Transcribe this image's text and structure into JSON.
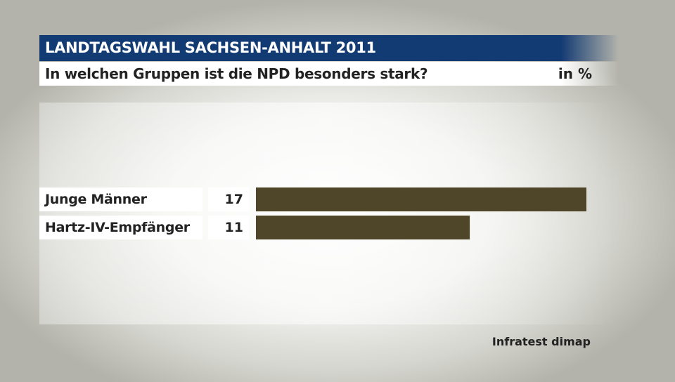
{
  "header": {
    "title": "LANDTAGSWAHL SACHSEN-ANHALT 2011",
    "subtitle": "In welchen Gruppen ist die NPD besonders stark?",
    "unit": "in %"
  },
  "source": "Infratest dimap",
  "colors": {
    "title_bar": "#123a73",
    "bar": "#4f4528"
  },
  "chart_data": {
    "type": "bar",
    "orientation": "horizontal",
    "categories": [
      "Junge Männer",
      "Hartz-IV-Empfänger"
    ],
    "values": [
      17,
      11
    ],
    "value_labels": [
      "17",
      "11"
    ],
    "title": "LANDTAGSWAHL SACHSEN-ANHALT 2011",
    "subtitle": "In welchen Gruppen ist die NPD besonders stark?",
    "unit": "in %",
    "xlim": [
      0,
      17
    ],
    "grid": false,
    "legend": "none"
  }
}
